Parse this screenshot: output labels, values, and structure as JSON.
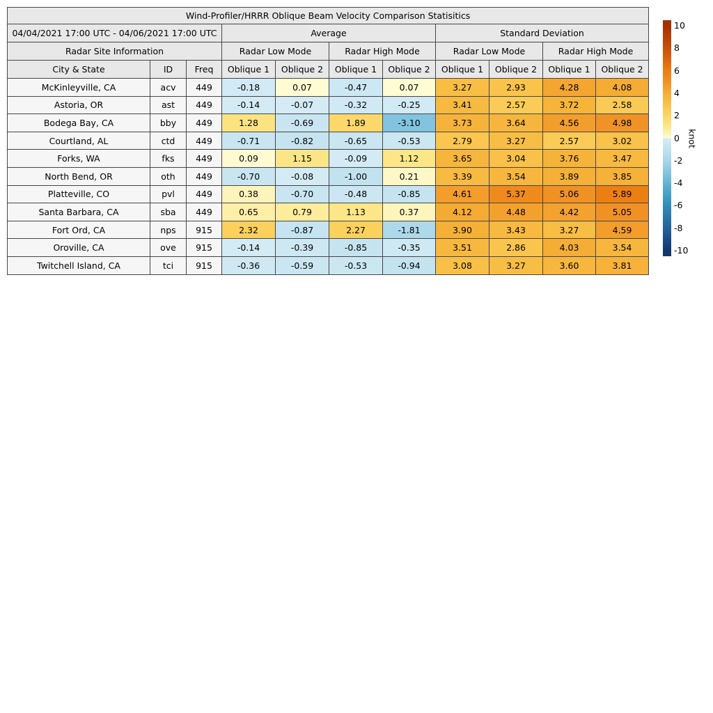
{
  "figure": {
    "title": "Wind-Profiler/HRRR Oblique Beam Velocity Comparison Statisitics"
  },
  "table": {
    "date_range": "04/04/2021 17:00 UTC - 04/06/2021 17:00 UTC",
    "group_headers": {
      "average": "Average",
      "std": "Standard Deviation"
    },
    "section_headers": {
      "site_info": "Radar Site Information",
      "low_mode": "Radar Low Mode",
      "high_mode": "Radar High Mode"
    },
    "column_headers": {
      "city": "City & State",
      "id": "ID",
      "freq": "Freq",
      "oblique1": "Oblique 1",
      "oblique2": "Oblique 2"
    }
  },
  "chart_data": {
    "type": "table",
    "title": "Wind-Profiler/HRRR Oblique Beam Velocity Comparison Statisitics",
    "value_units": "knot",
    "columns": [
      "City & State",
      "ID",
      "Freq",
      "Average Radar Low Mode Oblique 1",
      "Average Radar Low Mode Oblique 2",
      "Average Radar High Mode Oblique 1",
      "Average Radar High Mode Oblique 2",
      "Standard Deviation Radar Low Mode Oblique 1",
      "Standard Deviation Radar Low Mode Oblique 2",
      "Standard Deviation Radar High Mode Oblique 1",
      "Standard Deviation Radar High Mode Oblique 2"
    ],
    "rows": [
      {
        "city": "McKinleyville, CA",
        "id": "acv",
        "freq": "449",
        "values": [
          -0.18,
          0.07,
          -0.47,
          0.07,
          3.27,
          2.93,
          4.28,
          4.08
        ]
      },
      {
        "city": "Astoria, OR",
        "id": "ast",
        "freq": "449",
        "values": [
          -0.14,
          -0.07,
          -0.32,
          -0.25,
          3.41,
          2.57,
          3.72,
          2.58
        ]
      },
      {
        "city": "Bodega Bay, CA",
        "id": "bby",
        "freq": "449",
        "values": [
          1.28,
          -0.69,
          1.89,
          -3.1,
          3.73,
          3.64,
          4.56,
          4.98
        ]
      },
      {
        "city": "Courtland, AL",
        "id": "ctd",
        "freq": "449",
        "values": [
          -0.71,
          -0.82,
          -0.65,
          -0.53,
          2.79,
          3.27,
          2.57,
          3.02
        ]
      },
      {
        "city": "Forks, WA",
        "id": "fks",
        "freq": "449",
        "values": [
          0.09,
          1.15,
          -0.09,
          1.12,
          3.65,
          3.04,
          3.76,
          3.47
        ]
      },
      {
        "city": "North Bend, OR",
        "id": "oth",
        "freq": "449",
        "values": [
          -0.7,
          -0.08,
          -1.0,
          0.21,
          3.39,
          3.54,
          3.89,
          3.85
        ]
      },
      {
        "city": "Platteville, CO",
        "id": "pvl",
        "freq": "449",
        "values": [
          0.38,
          -0.7,
          -0.48,
          -0.85,
          4.61,
          5.37,
          5.06,
          5.89
        ]
      },
      {
        "city": "Santa Barbara, CA",
        "id": "sba",
        "freq": "449",
        "values": [
          0.65,
          0.79,
          1.13,
          0.37,
          4.12,
          4.48,
          4.42,
          5.05
        ]
      },
      {
        "city": "Fort Ord, CA",
        "id": "nps",
        "freq": "915",
        "values": [
          2.32,
          -0.87,
          2.27,
          -1.81,
          3.9,
          3.43,
          3.27,
          4.59
        ]
      },
      {
        "city": "Oroville, CA",
        "id": "ove",
        "freq": "915",
        "values": [
          -0.14,
          -0.39,
          -0.85,
          -0.35,
          3.51,
          2.86,
          4.03,
          3.54
        ]
      },
      {
        "city": "Twitchell Island, CA",
        "id": "tci",
        "freq": "915",
        "values": [
          -0.36,
          -0.59,
          -0.53,
          -0.94,
          3.08,
          3.27,
          3.6,
          3.81
        ]
      }
    ]
  },
  "colorbar": {
    "label": "knot",
    "ticks": [
      10,
      8,
      6,
      4,
      2,
      0,
      -2,
      -4,
      -6,
      -8,
      -10
    ],
    "vmin": -10.5,
    "vmax": 10.5
  },
  "colors": {
    "header_bg": "#e8e8e8",
    "site_bg": "#f6f6f6",
    "border": "#454545",
    "positive_ramp": [
      "#fffcd8",
      "#fce88c",
      "#fcd666",
      "#f9c24a",
      "#f5ae35",
      "#f09226",
      "#ec7d12",
      "#dd6410",
      "#c9500c",
      "#b64008",
      "#a33104"
    ],
    "negative_ramp": [
      "#d6ecf6",
      "#c2e2ef",
      "#a8d7e9",
      "#85c6e0",
      "#64b4d3",
      "#47a0c6",
      "#348db9",
      "#2b77ab",
      "#24629b",
      "#1b4c84",
      "#12386b"
    ]
  }
}
